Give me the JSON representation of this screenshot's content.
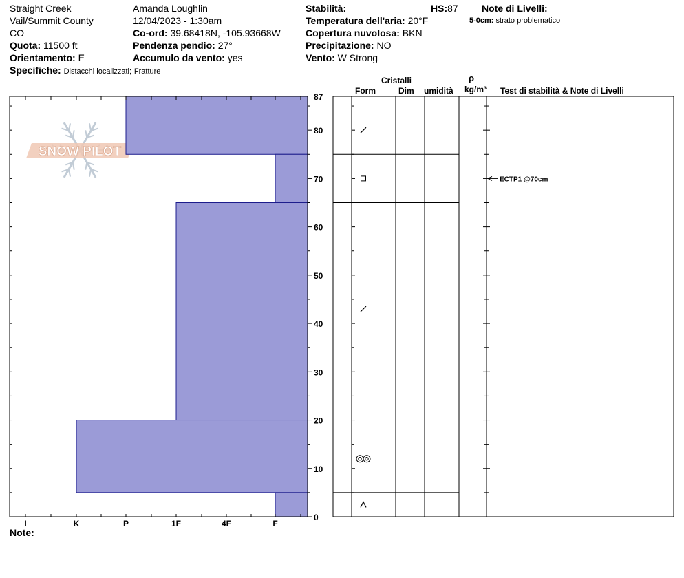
{
  "header": {
    "location": "Straight Creek",
    "region": "Vail/Summit County",
    "state": "CO",
    "elevation_label": "Quota:",
    "elevation_value": "11500 ft",
    "aspect_label": "Orientamento:",
    "aspect_value": "E",
    "details_label": "Specifiche:",
    "details_value_1": "Distacchi localizzati;",
    "details_value_2": "Fratture",
    "observer": "Amanda Loughlin",
    "datetime": "12/04/2023 - 1:30am",
    "coords_label": "Co-ord:",
    "coords_value": "39.68418N, -105.93668W",
    "slope_label": "Pendenza pendio:",
    "slope_value": "27°",
    "windload_label": "Accumulo da vento:",
    "windload_value": "yes",
    "stability_label": "Stabilità:",
    "hs_label": "HS:",
    "hs_value": "87",
    "airtemp_label": "Temperatura dell'aria:",
    "airtemp_value": "20°F",
    "sky_label": "Copertura nuvolosa:",
    "sky_value": "BKN",
    "precip_label": "Precipitazione:",
    "precip_value": "NO",
    "wind_label": "Vento:",
    "wind_value": "W Strong",
    "layer_notes_label": "Note di Livelli:",
    "layer_note_depth": "5-0cm:",
    "layer_note_text": "strato problematico"
  },
  "columns": {
    "crystals": "Cristalli",
    "form": "Form",
    "size": "Dim",
    "moisture": "umidità",
    "density_symbol": "ρ",
    "density_unit": "kg/m³",
    "tests": "Test di stabilità & Note di Livelli"
  },
  "footer": {
    "notes_label": "Note:"
  },
  "watermark": {
    "text": "SNOW PILOT",
    "icon": "snowflake-icon"
  },
  "colors": {
    "hardness_fill": "#9b9bd7",
    "hardness_stroke": "#1c1c8c"
  },
  "chart_data": {
    "type": "bar",
    "title": "",
    "ylabel": "",
    "xlabel": "",
    "ylim": [
      0,
      87
    ],
    "y_ticks": [
      0,
      10,
      20,
      30,
      40,
      50,
      60,
      70,
      80,
      87
    ],
    "hardness_scale": [
      "I",
      "K",
      "P",
      "1F",
      "4F",
      "F"
    ],
    "layers": [
      {
        "top": 87,
        "bottom": 75,
        "hardness": "P",
        "form": "faceted-decomposing"
      },
      {
        "top": 75,
        "bottom": 65,
        "hardness": "F",
        "form": "faceted"
      },
      {
        "top": 65,
        "bottom": 20,
        "hardness": "1F",
        "form": "faceted-decomposing"
      },
      {
        "top": 20,
        "bottom": 5,
        "hardness": "K",
        "form": "melt-freeze"
      },
      {
        "top": 5,
        "bottom": 0,
        "hardness": "F",
        "form": "depth-hoar"
      }
    ],
    "form_symbol_heights": [
      80,
      70,
      43,
      12,
      2.5
    ],
    "tests": [
      {
        "depth": 70,
        "label": "ECTP1 @70cm"
      }
    ]
  }
}
